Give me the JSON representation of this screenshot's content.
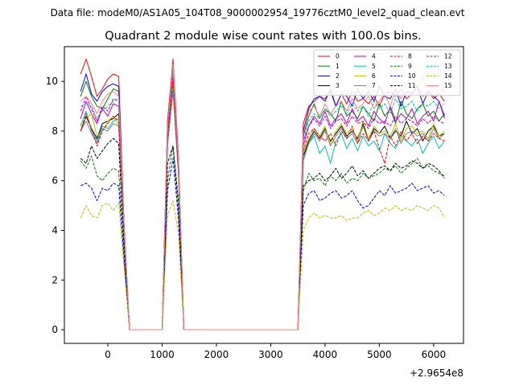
{
  "figure": {
    "suptitle": "Data file: modeM0/AS1A05_104T08_9000002954_19776cztM0_level2_quad_clean.evt",
    "background": "#ffffff"
  },
  "chart_data": {
    "type": "line",
    "title": "Quadrant 2 module wise count rates with 100.0s bins.",
    "xlabel": "",
    "ylabel": "",
    "x_offset_label": "+2.9654e8",
    "xlim": [
      -800,
      6550
    ],
    "ylim": [
      -0.55,
      11.4
    ],
    "xticks": [
      0,
      1000,
      2000,
      3000,
      4000,
      5000,
      6000
    ],
    "yticks": [
      0,
      2,
      4,
      6,
      8,
      10
    ],
    "grid": false,
    "legend": {
      "position": "top-right",
      "columns": 4
    },
    "x": [
      -500,
      -400,
      -300,
      -200,
      -100,
      0,
      100,
      200,
      300,
      400,
      500,
      600,
      700,
      800,
      900,
      1000,
      1100,
      1200,
      1300,
      1400,
      1500,
      1600,
      1700,
      1800,
      1900,
      2000,
      2100,
      2200,
      2300,
      2400,
      2500,
      2600,
      2700,
      2800,
      2900,
      3000,
      3100,
      3200,
      3300,
      3400,
      3500,
      3600,
      3700,
      3800,
      3900,
      4000,
      4100,
      4200,
      4300,
      4400,
      4500,
      4600,
      4700,
      4800,
      4900,
      5000,
      5100,
      5200,
      5300,
      5400,
      5500,
      5600,
      5700,
      5800,
      5900,
      6000,
      6100,
      6200
    ],
    "series": [
      {
        "name": "0",
        "color": "#ff0000",
        "dash": false,
        "values": [
          10.3,
          10.9,
          10.2,
          9.4,
          9.7,
          10.1,
          10.3,
          10.2,
          4.2,
          0,
          0,
          0,
          0,
          0,
          0,
          0,
          8.4,
          10.9,
          7.0,
          0,
          0,
          0,
          0,
          0,
          0,
          0,
          0,
          0,
          0,
          0,
          0,
          0,
          0,
          0,
          0,
          0,
          0,
          0,
          0,
          0,
          0,
          8.3,
          9.0,
          9.2,
          9.4,
          9.3,
          9.6,
          9.0,
          9.5,
          9.1,
          9.6,
          9.2,
          9.3,
          9.1,
          9.4,
          9.0,
          9.5,
          9.6,
          9.4,
          9.7,
          9.3,
          9.5,
          9.8,
          9.4,
          9.6,
          9.3,
          9.5,
          9.2
        ]
      },
      {
        "name": "1",
        "color": "#008000",
        "dash": false,
        "values": [
          9.4,
          10.0,
          9.4,
          9.0,
          8.9,
          9.3,
          9.7,
          9.6,
          4.0,
          0,
          0,
          0,
          0,
          0,
          0,
          0,
          8.0,
          10.6,
          6.7,
          0,
          0,
          0,
          0,
          0,
          0,
          0,
          0,
          0,
          0,
          0,
          0,
          0,
          0,
          0,
          0,
          0,
          0,
          0,
          0,
          0,
          0,
          7.8,
          8.6,
          9.1,
          8.5,
          8.9,
          8.7,
          8.4,
          9.2,
          8.6,
          8.8,
          8.5,
          9.0,
          8.7,
          8.4,
          9.1,
          8.6,
          8.9,
          8.3,
          9.2,
          8.7,
          8.5,
          8.9,
          9.1,
          8.6,
          8.8,
          8.4,
          8.7
        ]
      },
      {
        "name": "2",
        "color": "#0000ff",
        "dash": false,
        "values": [
          9.6,
          10.3,
          9.5,
          9.2,
          9.6,
          9.8,
          9.9,
          9.8,
          4.2,
          0,
          0,
          0,
          0,
          0,
          0,
          0,
          8.3,
          10.5,
          6.9,
          0,
          0,
          0,
          0,
          0,
          0,
          0,
          0,
          0,
          0,
          0,
          0,
          0,
          0,
          0,
          0,
          0,
          0,
          0,
          0,
          0,
          0,
          8.0,
          8.9,
          9.3,
          9.4,
          9.2,
          9.7,
          9.0,
          9.5,
          9.4,
          9.0,
          9.7,
          9.3,
          9.6,
          9.2,
          9.8,
          9.4,
          9.3,
          9.7,
          9.0,
          9.6,
          9.5,
          9.8,
          9.1,
          9.6,
          9.4,
          9.2,
          8.6
        ]
      },
      {
        "name": "3",
        "color": "#000000",
        "dash": false,
        "values": [
          8.0,
          8.6,
          8.1,
          7.7,
          8.3,
          8.4,
          8.5,
          8.7,
          3.8,
          0,
          0,
          0,
          0,
          0,
          0,
          0,
          7.6,
          9.8,
          6.4,
          0,
          0,
          0,
          0,
          0,
          0,
          0,
          0,
          0,
          0,
          0,
          0,
          0,
          0,
          0,
          0,
          0,
          0,
          0,
          0,
          0,
          0,
          7.0,
          7.6,
          8.0,
          7.7,
          8.1,
          7.6,
          7.9,
          8.2,
          7.8,
          8.0,
          7.7,
          8.3,
          7.6,
          8.1,
          7.9,
          8.2,
          7.7,
          8.0,
          7.8,
          8.4,
          7.9,
          8.1,
          7.6,
          8.0,
          8.2,
          7.8,
          7.9
        ]
      },
      {
        "name": "4",
        "color": "#bf00bf",
        "dash": false,
        "values": [
          8.5,
          9.2,
          8.7,
          8.3,
          8.9,
          8.6,
          9.1,
          9.0,
          3.9,
          0,
          0,
          0,
          0,
          0,
          0,
          0,
          7.8,
          10.2,
          6.6,
          0,
          0,
          0,
          0,
          0,
          0,
          0,
          0,
          0,
          0,
          0,
          0,
          0,
          0,
          0,
          0,
          0,
          0,
          0,
          0,
          0,
          0,
          7.4,
          8.2,
          8.6,
          8.3,
          8.8,
          8.2,
          8.5,
          8.7,
          8.3,
          8.9,
          8.4,
          8.6,
          8.2,
          8.8,
          8.5,
          8.3,
          9.0,
          8.4,
          8.7,
          8.5,
          8.9,
          8.3,
          8.6,
          8.8,
          8.4,
          9.2,
          8.5
        ]
      },
      {
        "name": "5",
        "color": "#00bfbf",
        "dash": false,
        "values": [
          8.2,
          8.8,
          8.0,
          7.6,
          8.2,
          8.1,
          8.4,
          8.5,
          3.7,
          0,
          0,
          0,
          0,
          0,
          0,
          0,
          7.5,
          9.9,
          6.3,
          0,
          0,
          0,
          0,
          0,
          0,
          0,
          0,
          0,
          0,
          0,
          0,
          0,
          0,
          0,
          0,
          0,
          0,
          0,
          0,
          0,
          0,
          6.9,
          7.5,
          7.8,
          7.1,
          7.4,
          6.7,
          7.6,
          7.9,
          7.3,
          7.7,
          7.2,
          7.8,
          7.4,
          7.6,
          7.2,
          7.9,
          7.5,
          7.3,
          7.8,
          7.6,
          7.4,
          7.7,
          7.1,
          7.5,
          7.8,
          7.3,
          7.6
        ]
      },
      {
        "name": "6",
        "color": "#bfbf00",
        "dash": false,
        "values": [
          8.3,
          8.5,
          8.7,
          7.8,
          8.0,
          8.4,
          8.6,
          8.2,
          3.8,
          0,
          0,
          0,
          0,
          0,
          0,
          0,
          7.6,
          9.7,
          6.5,
          0,
          0,
          0,
          0,
          0,
          0,
          0,
          0,
          0,
          0,
          0,
          0,
          0,
          0,
          0,
          0,
          0,
          0,
          0,
          0,
          0,
          0,
          7.1,
          7.7,
          8.1,
          7.8,
          8.2,
          7.5,
          8.0,
          8.3,
          7.9,
          8.1,
          7.6,
          8.4,
          7.7,
          8.2,
          7.9,
          8.0,
          7.8,
          8.3,
          7.6,
          8.1,
          8.2,
          7.9,
          8.0,
          7.7,
          8.3,
          7.8,
          8.0
        ]
      },
      {
        "name": "7",
        "color": "#7f7f7f",
        "dash": false,
        "values": [
          8.0,
          8.4,
          7.9,
          7.5,
          8.1,
          8.0,
          8.3,
          8.2,
          3.7,
          0,
          0,
          0,
          0,
          0,
          0,
          0,
          7.4,
          9.6,
          6.3,
          0,
          0,
          0,
          0,
          0,
          0,
          0,
          0,
          0,
          0,
          0,
          0,
          0,
          0,
          0,
          0,
          0,
          0,
          0,
          0,
          0,
          0,
          6.8,
          7.5,
          7.9,
          7.6,
          8.0,
          7.4,
          7.8,
          8.1,
          7.7,
          7.9,
          7.5,
          8.2,
          7.6,
          8.0,
          7.8,
          7.9,
          7.7,
          8.1,
          7.5,
          7.9,
          8.0,
          7.8,
          7.9,
          7.6,
          8.1,
          7.7,
          7.9
        ]
      },
      {
        "name": "8",
        "color": "#ff0000",
        "dash": true,
        "values": [
          8.0,
          8.7,
          8.1,
          7.4,
          8.0,
          8.3,
          8.6,
          8.4,
          3.8,
          0,
          0,
          0,
          0,
          0,
          0,
          0,
          7.7,
          10.0,
          6.4,
          0,
          0,
          0,
          0,
          0,
          0,
          0,
          0,
          0,
          0,
          0,
          0,
          0,
          0,
          0,
          0,
          0,
          0,
          0,
          0,
          0,
          0,
          7.2,
          7.9,
          8.1,
          7.8,
          7.6,
          7.9,
          7.4,
          8.0,
          7.7,
          8.2,
          7.5,
          7.9,
          7.6,
          8.0,
          7.3,
          6.7,
          7.8,
          7.4,
          8.0,
          7.6,
          7.9,
          7.5,
          7.8,
          7.6,
          7.9,
          7.7,
          7.6
        ]
      },
      {
        "name": "9",
        "color": "#008000",
        "dash": true,
        "values": [
          6.8,
          6.5,
          7.0,
          6.2,
          6.0,
          6.3,
          6.5,
          6.4,
          3.0,
          0,
          0,
          0,
          0,
          0,
          0,
          0,
          6.0,
          7.4,
          4.8,
          0,
          0,
          0,
          0,
          0,
          0,
          0,
          0,
          0,
          0,
          0,
          0,
          0,
          0,
          0,
          0,
          0,
          0,
          0,
          0,
          0,
          0,
          5.6,
          6.3,
          6.0,
          6.1,
          5.8,
          6.2,
          6.0,
          6.3,
          5.9,
          6.1,
          6.0,
          6.3,
          6.1,
          6.2,
          6.3,
          6.5,
          6.4,
          6.6,
          6.3,
          6.5,
          6.7,
          6.9,
          6.5,
          6.6,
          6.4,
          6.3,
          6.2
        ]
      },
      {
        "name": "10",
        "color": "#0000ff",
        "dash": true,
        "values": [
          5.8,
          5.9,
          5.7,
          5.2,
          5.7,
          5.6,
          5.9,
          5.8,
          2.8,
          0,
          0,
          0,
          0,
          0,
          0,
          0,
          5.6,
          6.9,
          4.5,
          0,
          0,
          0,
          0,
          0,
          0,
          0,
          0,
          0,
          0,
          0,
          0,
          0,
          0,
          0,
          0,
          0,
          0,
          0,
          0,
          0,
          0,
          5.0,
          5.5,
          5.6,
          5.2,
          5.3,
          5.5,
          5.6,
          5.3,
          5.4,
          5.6,
          5.2,
          4.9,
          5.0,
          5.3,
          5.6,
          5.4,
          5.8,
          5.5,
          5.6,
          5.7,
          5.9,
          5.6,
          5.7,
          5.8,
          5.5,
          5.6,
          5.4
        ]
      },
      {
        "name": "11",
        "color": "#000000",
        "dash": true,
        "values": [
          6.9,
          6.7,
          7.4,
          6.9,
          7.2,
          7.5,
          7.7,
          7.5,
          3.4,
          0,
          0,
          0,
          0,
          0,
          0,
          0,
          6.7,
          7.4,
          5.2,
          0,
          0,
          0,
          0,
          0,
          0,
          0,
          0,
          0,
          0,
          0,
          0,
          0,
          0,
          0,
          0,
          0,
          0,
          0,
          0,
          0,
          0,
          5.8,
          6.0,
          6.1,
          6.3,
          6.0,
          6.2,
          6.5,
          6.1,
          6.3,
          6.6,
          6.2,
          6.4,
          6.1,
          6.3,
          6.5,
          6.6,
          6.4,
          6.7,
          6.5,
          6.6,
          6.8,
          6.7,
          6.5,
          6.7,
          6.6,
          6.4,
          6.1
        ]
      },
      {
        "name": "12",
        "color": "#bf00bf",
        "dash": true,
        "values": [
          8.8,
          9.4,
          8.9,
          8.4,
          9.0,
          8.8,
          9.3,
          9.2,
          4.0,
          0,
          0,
          0,
          0,
          0,
          0,
          0,
          7.9,
          10.3,
          6.7,
          0,
          0,
          0,
          0,
          0,
          0,
          0,
          0,
          0,
          0,
          0,
          0,
          0,
          0,
          0,
          0,
          0,
          0,
          0,
          0,
          0,
          0,
          7.6,
          8.2,
          8.5,
          8.2,
          8.6,
          8.1,
          8.4,
          8.5,
          8.2,
          8.6,
          8.3,
          8.4,
          8.1,
          8.5,
          8.3,
          8.4,
          8.2,
          8.6,
          8.3,
          8.5,
          8.4,
          8.2,
          8.5,
          8.3,
          8.6,
          8.4,
          8.3
        ]
      },
      {
        "name": "13",
        "color": "#00bfbf",
        "dash": true,
        "values": [
          9.0,
          9.1,
          9.0,
          8.5,
          8.8,
          9.0,
          9.2,
          9.3,
          4.1,
          0,
          0,
          0,
          0,
          0,
          0,
          0,
          8.1,
          10.4,
          6.8,
          0,
          0,
          0,
          0,
          0,
          0,
          0,
          0,
          0,
          0,
          0,
          0,
          0,
          0,
          0,
          0,
          0,
          0,
          0,
          0,
          0,
          0,
          7.7,
          8.4,
          8.7,
          8.5,
          8.9,
          8.6,
          8.8,
          9.0,
          8.7,
          9.1,
          8.8,
          9.0,
          8.6,
          9.2,
          8.9,
          9.1,
          8.7,
          9.3,
          8.9,
          9.0,
          9.2,
          8.8,
          9.1,
          9.0,
          9.2,
          8.9,
          9.1
        ]
      },
      {
        "name": "14",
        "color": "#bfbf00",
        "dash": true,
        "values": [
          4.5,
          5.0,
          4.6,
          4.5,
          5.0,
          5.1,
          4.8,
          5.1,
          2.5,
          0,
          0,
          0,
          0,
          0,
          0,
          0,
          4.6,
          5.2,
          3.9,
          0,
          0,
          0,
          0,
          0,
          0,
          0,
          0,
          0,
          0,
          0,
          0,
          0,
          0,
          0,
          0,
          0,
          0,
          0,
          0,
          0,
          0,
          4.0,
          4.5,
          4.7,
          4.5,
          4.6,
          4.5,
          4.5,
          4.6,
          4.4,
          4.5,
          4.5,
          4.7,
          4.8,
          4.6,
          4.7,
          4.9,
          4.8,
          5.0,
          4.8,
          4.9,
          4.8,
          5.0,
          4.9,
          4.8,
          5.0,
          4.9,
          4.5
        ]
      },
      {
        "name": "15",
        "color": "#ff7f7f",
        "dash": false,
        "values": [
          9.2,
          9.4,
          9.1,
          8.7,
          9.2,
          9.5,
          9.6,
          9.4,
          4.1,
          0,
          0,
          0,
          0,
          0,
          0,
          0,
          8.2,
          10.7,
          6.8,
          0,
          0,
          0,
          0,
          0,
          0,
          0,
          0,
          0,
          0,
          0,
          0,
          0,
          0,
          0,
          0,
          0,
          0,
          0,
          0,
          0,
          0,
          7.9,
          8.8,
          9.0,
          8.6,
          9.1,
          8.7,
          9.0,
          9.2,
          8.8,
          9.3,
          8.9,
          9.1,
          9.4,
          8.9,
          9.2,
          9.5,
          9.0,
          9.6,
          9.3,
          9.9,
          10.3,
          9.7,
          10.2,
          9.4,
          9.8,
          9.5,
          9.7
        ]
      }
    ]
  }
}
